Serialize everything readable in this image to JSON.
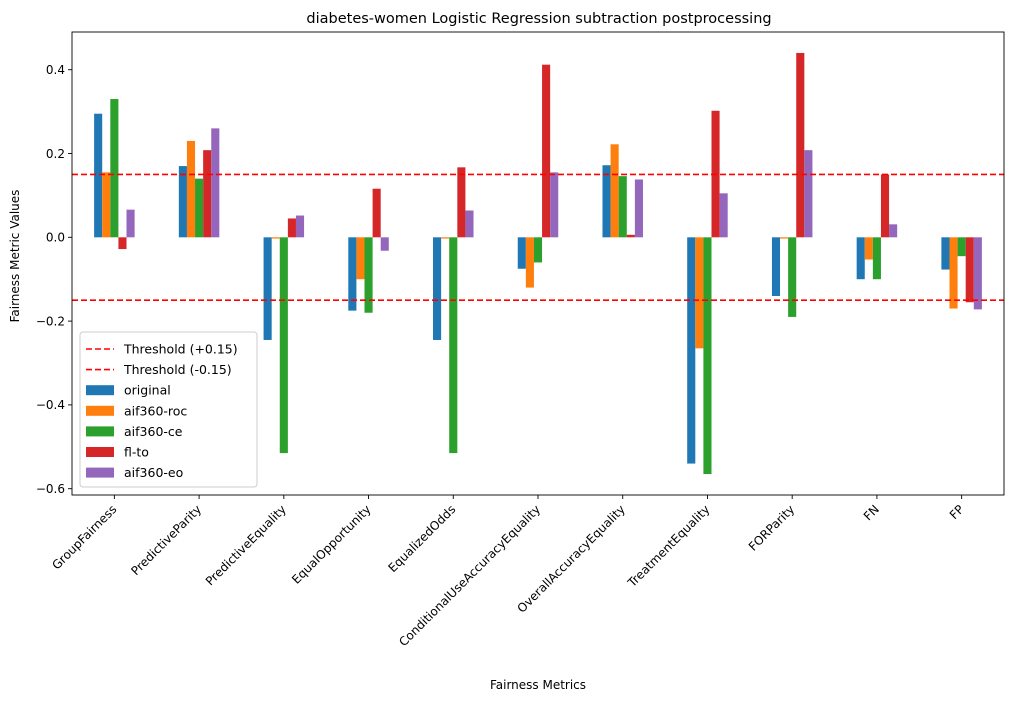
{
  "chart_data": {
    "type": "bar",
    "title": "diabetes-women Logistic Regression subtraction postprocessing",
    "xlabel": "Fairness Metrics",
    "ylabel": "Fairness Metric Values",
    "ylim": [
      -0.615,
      0.49
    ],
    "yticks": [
      -0.6,
      -0.4,
      -0.2,
      0.0,
      0.2,
      0.4
    ],
    "ytick_labels": [
      "−0.6",
      "−0.4",
      "−0.2",
      "0.0",
      "0.2",
      "0.4"
    ],
    "grid": false,
    "legend_position": "lower-left",
    "categories": [
      "GroupFairness",
      "PredictiveParity",
      "PredictiveEquality",
      "EqualOpportunity",
      "EqualizedOdds",
      "ConditionalUseAccuracyEquality",
      "OverallAccuracyEquality",
      "TreatmentEquality",
      "FORParity",
      "FN",
      "FP"
    ],
    "thresholds": [
      {
        "label": "Threshold (+0.15)",
        "value": 0.15,
        "color": "#ff0000"
      },
      {
        "label": "Threshold (-0.15)",
        "value": -0.15,
        "color": "#ff0000"
      }
    ],
    "series": [
      {
        "name": "original",
        "color": "#1f77b4",
        "values": [
          0.295,
          0.17,
          -0.245,
          -0.175,
          -0.245,
          -0.075,
          0.172,
          -0.54,
          -0.14,
          -0.1,
          -0.077
        ]
      },
      {
        "name": "aif360-roc",
        "color": "#ff7f0e",
        "values": [
          0.155,
          0.23,
          -0.003,
          -0.1,
          -0.003,
          -0.12,
          0.222,
          -0.265,
          -0.003,
          -0.053,
          -0.17
        ]
      },
      {
        "name": "aif360-ce",
        "color": "#2ca02c",
        "values": [
          0.33,
          0.14,
          -0.515,
          -0.18,
          -0.515,
          -0.06,
          0.146,
          -0.565,
          -0.19,
          -0.1,
          -0.045
        ]
      },
      {
        "name": "fl-to",
        "color": "#d62728",
        "values": [
          -0.028,
          0.208,
          0.045,
          0.116,
          0.167,
          0.412,
          0.006,
          0.302,
          0.44,
          0.15,
          -0.155
        ]
      },
      {
        "name": "aif360-eo",
        "color": "#9467bd",
        "values": [
          0.066,
          0.26,
          0.052,
          -0.032,
          0.064,
          0.155,
          0.138,
          0.105,
          0.208,
          0.031,
          -0.172
        ]
      }
    ]
  }
}
